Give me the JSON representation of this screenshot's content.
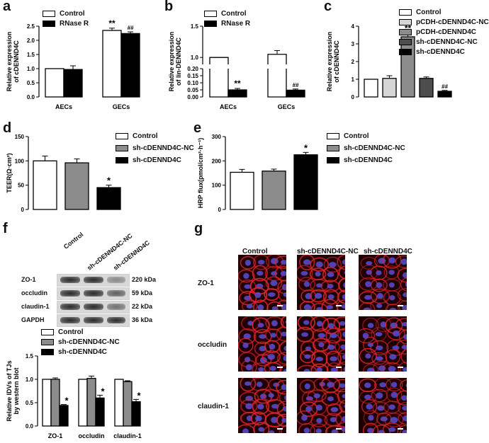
{
  "panels": {
    "a": {
      "letter": "a",
      "ylabel": "Relative expression of cDENND4C",
      "yticks": [
        "0.0",
        "0.5",
        "1.0",
        "1.5",
        "2.0",
        "2.5"
      ],
      "legend": [
        "Control",
        "RNase R"
      ]
    },
    "b": {
      "letter": "b",
      "ylabel": "Relative expression of lin-DENND4C",
      "yticks_low": [
        "0.00",
        "0.05",
        "0.10",
        "0.15",
        "0.20"
      ],
      "yticks_high": [
        "1.0",
        "1.5"
      ],
      "legend": [
        "Control",
        "RNase R"
      ]
    },
    "c": {
      "letter": "c",
      "ylabel": "Relative expression of cDENND4C",
      "yticks": [
        "0",
        "1",
        "2",
        "3",
        "4"
      ],
      "legend": [
        "Control",
        "pCDH-cDENND4C-NC",
        "pCDH-cDENND4C",
        "sh-cDENND4C-NC",
        "sh-cDENND4C"
      ]
    },
    "d": {
      "letter": "d",
      "ylabel": "TEER(Ω·cm²)",
      "yticks": [
        "0",
        "50",
        "100",
        "150"
      ],
      "legend": [
        "Control",
        "sh-cDENND4C-NC",
        "sh-cDENND4C"
      ]
    },
    "e": {
      "letter": "e",
      "ylabel": "HRP flux(pmol/cm²·h⁻¹)",
      "yticks": [
        "0",
        "100",
        "200",
        "300"
      ],
      "legend": [
        "Control",
        "sh-cDENND4C-NC",
        "sh-cDENND4C"
      ]
    },
    "f": {
      "letter": "f",
      "lanes": [
        "Control",
        "sh-cDENND4C-NC",
        "sh-cDENND4C"
      ],
      "blots": [
        {
          "name": "ZO-1",
          "kda": "220 kDa",
          "int": [
            0.9,
            0.85,
            0.45
          ]
        },
        {
          "name": "occludin",
          "kda": "59 kDa",
          "int": [
            0.9,
            0.95,
            0.65
          ]
        },
        {
          "name": "claudin-1",
          "kda": "22 kDa",
          "int": [
            0.9,
            0.9,
            0.55
          ]
        },
        {
          "name": "GAPDH",
          "kda": "36 kDa",
          "int": [
            0.95,
            0.95,
            0.95
          ]
        }
      ],
      "legend": [
        "Control",
        "sh-cDENND4C-NC",
        "sh-cDENND4C"
      ],
      "ylabel": "Relative IDVs of TJs by western blot",
      "yticks": [
        "0.0",
        "0.5",
        "1.0",
        "1.5"
      ]
    },
    "g": {
      "letter": "g",
      "cols": [
        "Control",
        "sh-cDENND4C-NC",
        "sh-cDENND4C"
      ],
      "rows": [
        "ZO-1",
        "occludin",
        "claudin-1"
      ]
    }
  },
  "chart_data": [
    {
      "panel": "a",
      "type": "bar",
      "categories": [
        "AECs",
        "GECs"
      ],
      "ylim": [
        0,
        2.5
      ],
      "series": [
        {
          "name": "Control",
          "values": [
            1.0,
            2.35
          ],
          "err": [
            0,
            0.08
          ],
          "color": "#ffffff"
        },
        {
          "name": "RNase R",
          "values": [
            0.97,
            2.24
          ],
          "err": [
            0.13,
            0.06
          ],
          "color": "#000000"
        }
      ],
      "annotations": [
        {
          "category": "GECs",
          "series": 0,
          "text": "**"
        },
        {
          "category": "GECs",
          "series": 1,
          "text": "##"
        }
      ]
    },
    {
      "panel": "b",
      "type": "bar",
      "categories": [
        "AECs",
        "GECs"
      ],
      "broken_axis": true,
      "series": [
        {
          "name": "Control",
          "values": [
            1.0,
            1.05
          ],
          "err": [
            0,
            0.06
          ],
          "color": "#ffffff"
        },
        {
          "name": "RNase R",
          "values": [
            0.05,
            0.048
          ],
          "err": [
            0.01,
            0.008
          ],
          "color": "#000000"
        }
      ],
      "annotations": [
        {
          "category": "AECs",
          "series": 1,
          "text": "**"
        },
        {
          "category": "GECs",
          "series": 1,
          "text": "##"
        }
      ]
    },
    {
      "panel": "c",
      "type": "bar",
      "categories": [
        "Control",
        "pCDH-cDENND4C-NC",
        "pCDH-cDENND4C",
        "sh-cDENND4C-NC",
        "sh-cDENND4C"
      ],
      "ylim": [
        0,
        4
      ],
      "values": [
        1.0,
        1.05,
        3.4,
        1.05,
        0.32
      ],
      "err": [
        0,
        0.15,
        0.2,
        0.08,
        0.05
      ],
      "colors": [
        "#ffffff",
        "#d6d6d6",
        "#8c8c8c",
        "#4d4d4d",
        "#000000"
      ],
      "annotations": [
        {
          "index": 2,
          "text": "**"
        },
        {
          "index": 4,
          "text": "##"
        }
      ]
    },
    {
      "panel": "d",
      "type": "bar",
      "categories": [
        "Control",
        "sh-cDENND4C-NC",
        "sh-cDENND4C"
      ],
      "ylim": [
        0,
        150
      ],
      "values": [
        100,
        96,
        45
      ],
      "err": [
        10,
        8,
        5
      ],
      "colors": [
        "#ffffff",
        "#8c8c8c",
        "#000000"
      ],
      "annotations": [
        {
          "index": 2,
          "text": "*"
        }
      ]
    },
    {
      "panel": "e",
      "type": "bar",
      "categories": [
        "Control",
        "sh-cDENND4C-NC",
        "sh-cDENND4C"
      ],
      "ylim": [
        0,
        300
      ],
      "values": [
        153,
        158,
        225
      ],
      "err": [
        12,
        8,
        10
      ],
      "colors": [
        "#ffffff",
        "#8c8c8c",
        "#000000"
      ],
      "annotations": [
        {
          "index": 2,
          "text": "*"
        }
      ]
    },
    {
      "panel": "f",
      "type": "bar",
      "categories": [
        "ZO-1",
        "occludin",
        "claudin-1"
      ],
      "ylim": [
        0,
        1.5
      ],
      "series": [
        {
          "name": "Control",
          "values": [
            1.0,
            1.0,
            1.0
          ],
          "err": [
            0,
            0,
            0
          ],
          "color": "#ffffff"
        },
        {
          "name": "sh-cDENND4C-NC",
          "values": [
            1.0,
            1.02,
            0.95
          ],
          "err": [
            0.03,
            0.05,
            0.02
          ],
          "color": "#8c8c8c"
        },
        {
          "name": "sh-cDENND4C",
          "values": [
            0.44,
            0.6,
            0.52
          ],
          "err": [
            0.02,
            0.06,
            0.05
          ],
          "color": "#000000"
        }
      ],
      "annotations": [
        {
          "category": "ZO-1",
          "series": 2,
          "text": "*"
        },
        {
          "category": "occludin",
          "series": 2,
          "text": "*"
        },
        {
          "category": "claudin-1",
          "series": 2,
          "text": "*"
        }
      ]
    }
  ]
}
